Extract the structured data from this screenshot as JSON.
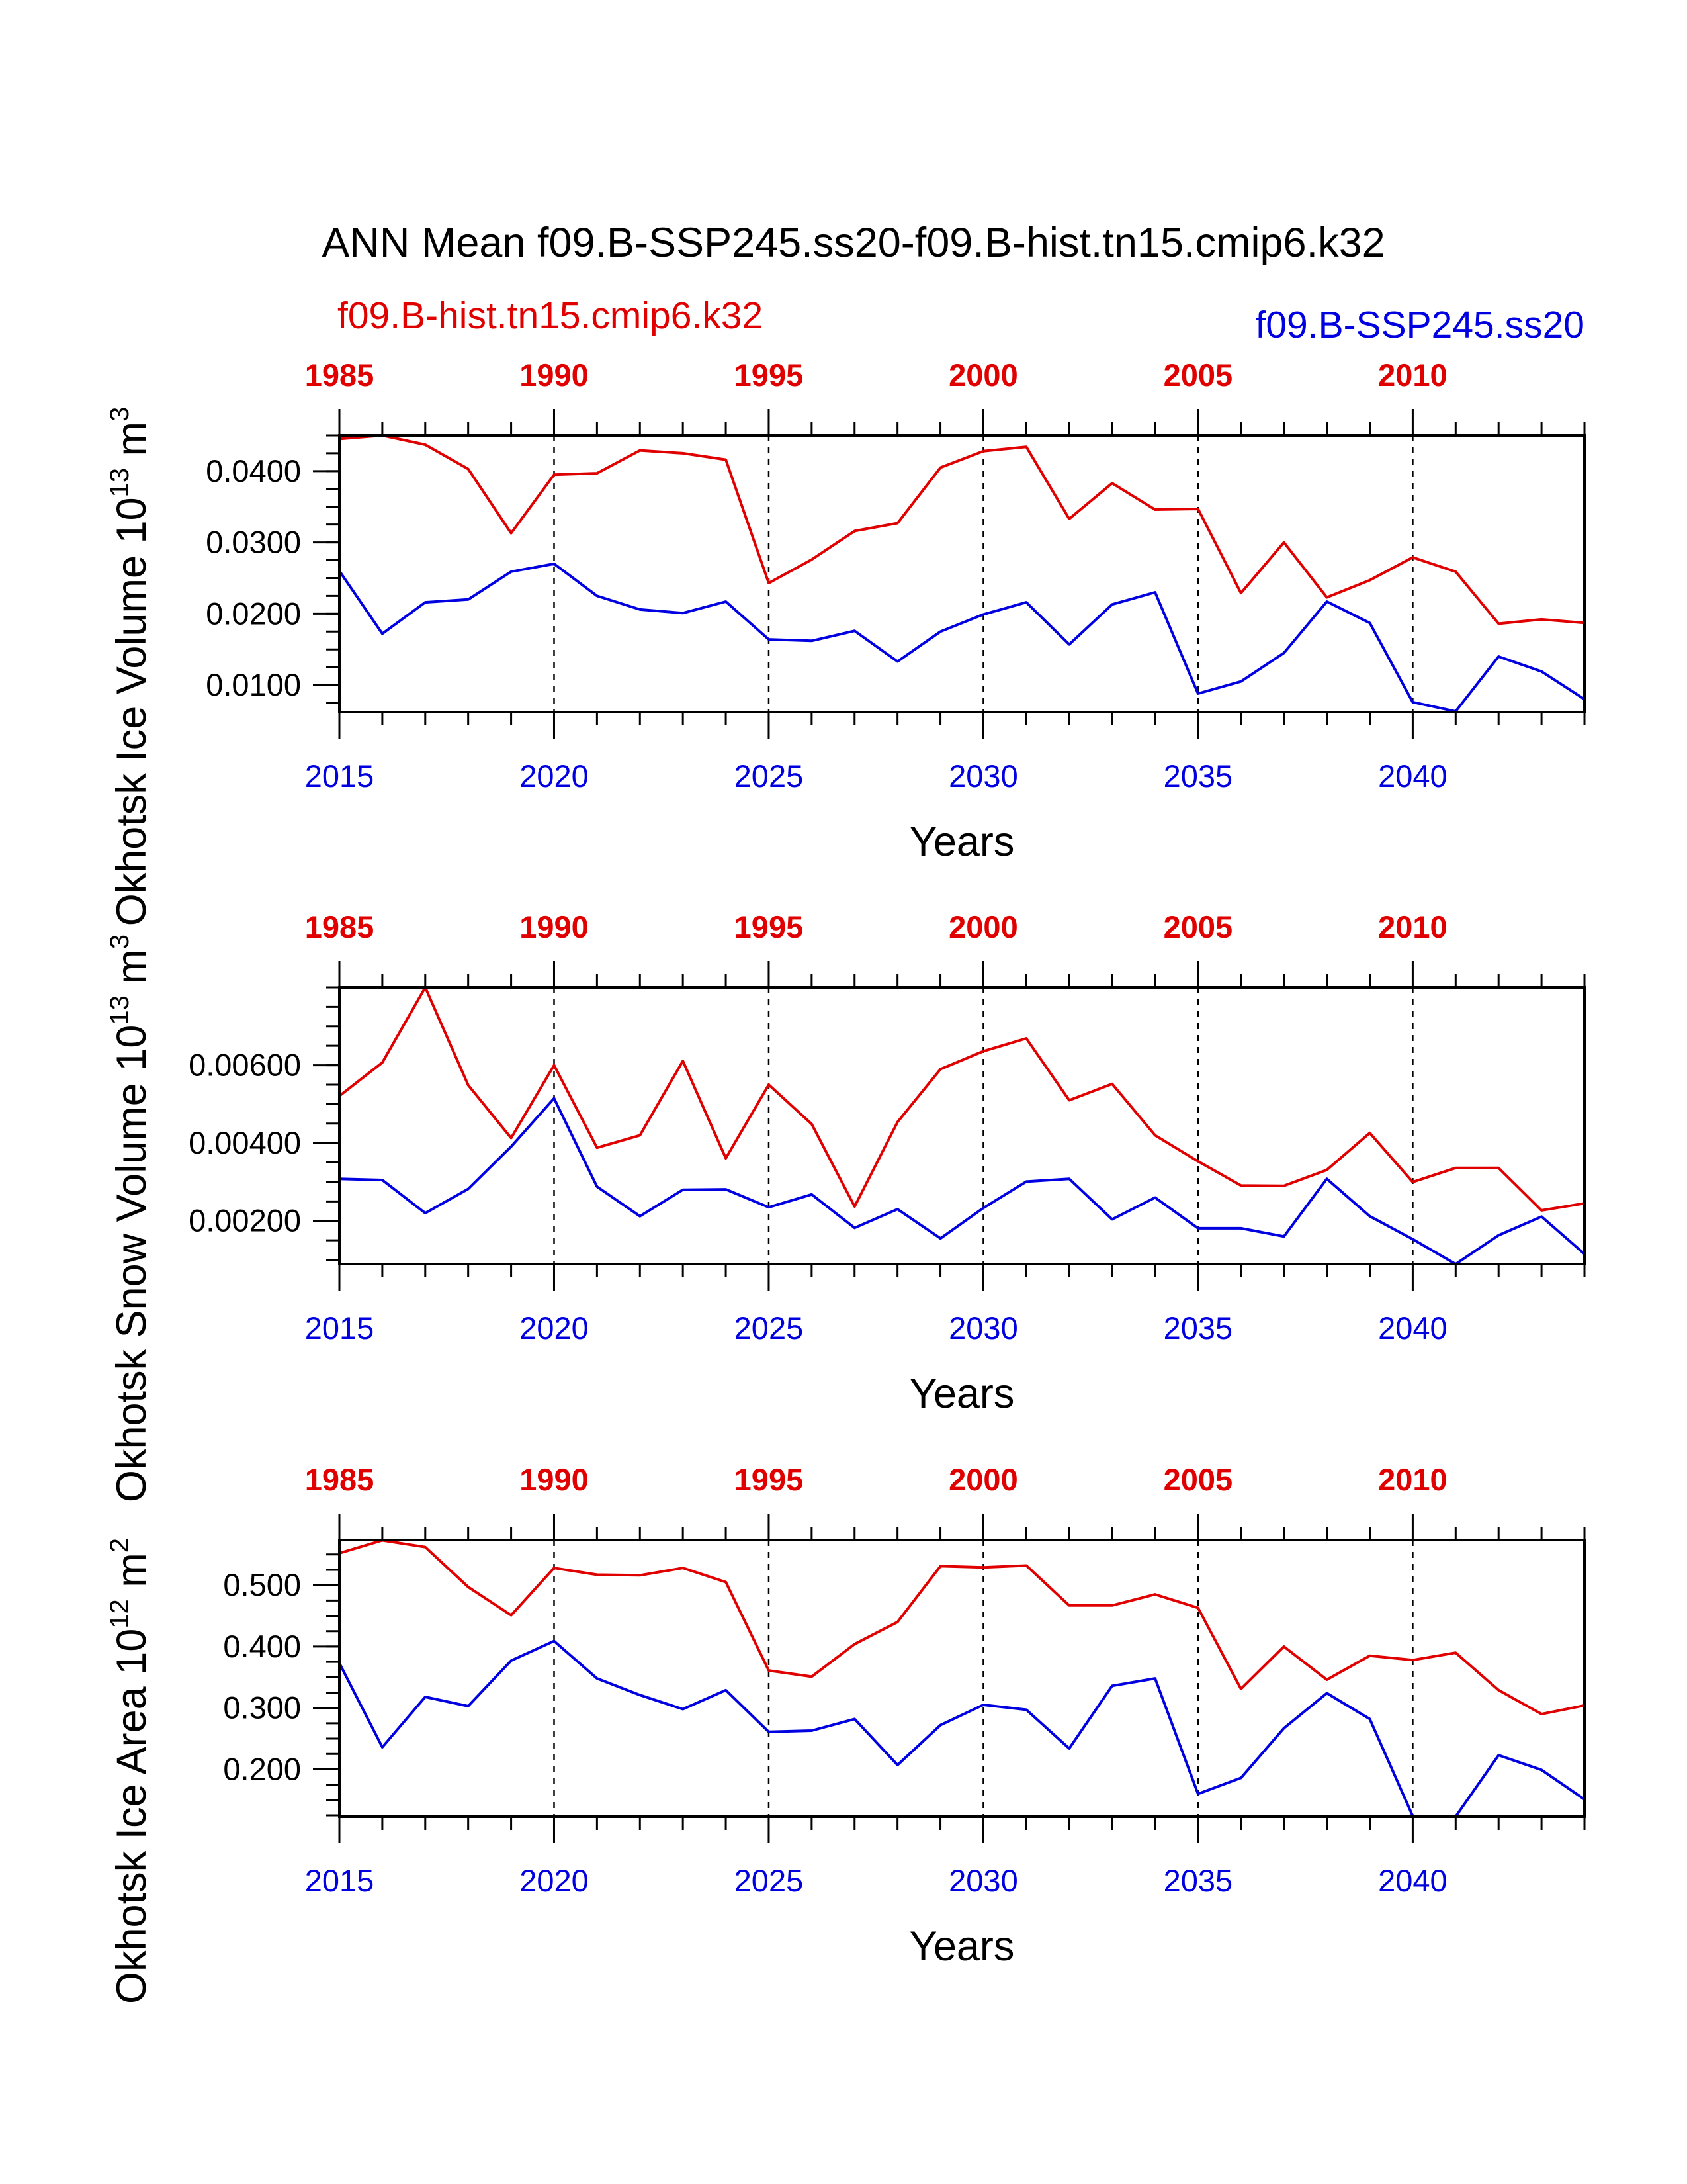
{
  "title": "ANN Mean f09.B-SSP245.ss20-f09.B-hist.tn15.cmip6.k32",
  "legend": {
    "hist": "f09.B-hist.tn15.cmip6.k32",
    "ssp": "f09.B-SSP245.ss20"
  },
  "colors": {
    "hist": "#e00000",
    "ssp": "#0000e0",
    "axis": "#000000"
  },
  "chart_data": [
    {
      "type": "line",
      "ylabel_main": "Okhotsk Ice Volume 10",
      "ylabel_exp": "13",
      "ylabel_unit": " m",
      "ylabel_unit_exp": "3",
      "xlabel": "Years",
      "bottom_ticks": [
        "2015",
        "2020",
        "2025",
        "2030",
        "2035",
        "2040"
      ],
      "top_ticks": [
        "1985",
        "1990",
        "1995",
        "2000",
        "2005",
        "2010"
      ],
      "ytick_labels": [
        "0.0100",
        "0.0200",
        "0.0300",
        "0.0400"
      ],
      "ylim": [
        0.0062,
        0.045
      ],
      "x_years": [
        2015,
        2016,
        2017,
        2018,
        2019,
        2020,
        2021,
        2022,
        2023,
        2024,
        2025,
        2026,
        2027,
        2028,
        2029,
        2030,
        2031,
        2032,
        2033,
        2034,
        2035,
        2036,
        2037,
        2038,
        2039,
        2040,
        2041,
        2042,
        2043,
        2044
      ],
      "series": [
        {
          "name": "f09.B-hist.tn15.cmip6.k32",
          "values": [
            0.0445,
            0.045,
            0.0437,
            0.0403,
            0.0313,
            0.0395,
            0.0397,
            0.0429,
            0.0425,
            0.0416,
            0.0243,
            0.0276,
            0.0316,
            0.0327,
            0.0405,
            0.0428,
            0.0434,
            0.0333,
            0.0383,
            0.0346,
            0.0347,
            0.0229,
            0.03,
            0.0223,
            0.0247,
            0.0279,
            0.0259,
            0.0186,
            0.0192,
            0.0187
          ]
        },
        {
          "name": "f09.B-SSP245.ss20",
          "values": [
            0.026,
            0.0172,
            0.0216,
            0.022,
            0.0259,
            0.027,
            0.0225,
            0.0206,
            0.0201,
            0.0217,
            0.0164,
            0.0162,
            0.0176,
            0.0133,
            0.0175,
            0.0199,
            0.0216,
            0.0157,
            0.0213,
            0.023,
            0.0088,
            0.0105,
            0.0145,
            0.0217,
            0.0187,
            0.0076,
            0.0063,
            0.014,
            0.0119,
            0.008
          ]
        }
      ]
    },
    {
      "type": "line",
      "ylabel_main": "Okhotsk Snow Volume 10",
      "ylabel_exp": "13",
      "ylabel_unit": " m",
      "ylabel_unit_exp": "3",
      "xlabel": "Years",
      "bottom_ticks": [
        "2015",
        "2020",
        "2025",
        "2030",
        "2035",
        "2040"
      ],
      "top_ticks": [
        "1985",
        "1990",
        "1995",
        "2000",
        "2005",
        "2010"
      ],
      "ytick_labels": [
        "0.00200",
        "0.00400",
        "0.00600"
      ],
      "ylim": [
        0.00089,
        0.008
      ],
      "x_years": [
        2015,
        2016,
        2017,
        2018,
        2019,
        2020,
        2021,
        2022,
        2023,
        2024,
        2025,
        2026,
        2027,
        2028,
        2029,
        2030,
        2031,
        2032,
        2033,
        2034,
        2035,
        2036,
        2037,
        2038,
        2039,
        2040,
        2041,
        2042,
        2043,
        2044
      ],
      "series": [
        {
          "name": "f09.B-hist.tn15.cmip6.k32",
          "values": [
            0.00521,
            0.00607,
            0.008,
            0.00549,
            0.00413,
            0.006,
            0.00388,
            0.0042,
            0.00611,
            0.00361,
            0.0055,
            0.00449,
            0.00237,
            0.00454,
            0.0059,
            0.00636,
            0.00669,
            0.0051,
            0.00552,
            0.0042,
            0.00353,
            0.00291,
            0.0029,
            0.00331,
            0.00426,
            0.003,
            0.00336,
            0.00336,
            0.00227,
            0.00245
          ]
        },
        {
          "name": "f09.B-SSP245.ss20",
          "values": [
            0.00308,
            0.00305,
            0.0022,
            0.00282,
            0.00391,
            0.00515,
            0.00288,
            0.00212,
            0.0028,
            0.00281,
            0.00235,
            0.00268,
            0.00182,
            0.0023,
            0.00155,
            0.00233,
            0.00301,
            0.00308,
            0.00204,
            0.0026,
            0.00181,
            0.00181,
            0.0016,
            0.00308,
            0.00212,
            0.00153,
            0.00089,
            0.00163,
            0.00211,
            0.00115
          ]
        }
      ]
    },
    {
      "type": "line",
      "ylabel_main": "Okhotsk Ice Area 10",
      "ylabel_exp": "12",
      "ylabel_unit": " m",
      "ylabel_unit_exp": "2",
      "xlabel": "Years",
      "bottom_ticks": [
        "2015",
        "2020",
        "2025",
        "2030",
        "2035",
        "2040"
      ],
      "top_ticks": [
        "1985",
        "1990",
        "1995",
        "2000",
        "2005",
        "2010"
      ],
      "ytick_labels": [
        "0.200",
        "0.300",
        "0.400",
        "0.500"
      ],
      "ylim": [
        0.1228,
        0.5735
      ],
      "x_years": [
        2015,
        2016,
        2017,
        2018,
        2019,
        2020,
        2021,
        2022,
        2023,
        2024,
        2025,
        2026,
        2027,
        2028,
        2029,
        2030,
        2031,
        2032,
        2033,
        2034,
        2035,
        2036,
        2037,
        2038,
        2039,
        2040,
        2041,
        2042,
        2043,
        2044
      ],
      "series": [
        {
          "name": "f09.B-hist.tn15.cmip6.k32",
          "values": [
            0.552,
            0.573,
            0.562,
            0.497,
            0.451,
            0.528,
            0.517,
            0.516,
            0.528,
            0.505,
            0.361,
            0.351,
            0.404,
            0.44,
            0.531,
            0.529,
            0.532,
            0.467,
            0.467,
            0.485,
            0.463,
            0.331,
            0.4,
            0.346,
            0.385,
            0.378,
            0.39,
            0.329,
            0.29,
            0.304
          ]
        },
        {
          "name": "f09.B-SSP245.ss20",
          "values": [
            0.373,
            0.236,
            0.318,
            0.303,
            0.377,
            0.409,
            0.348,
            0.321,
            0.298,
            0.329,
            0.261,
            0.263,
            0.282,
            0.207,
            0.272,
            0.305,
            0.297,
            0.234,
            0.336,
            0.348,
            0.16,
            0.186,
            0.267,
            0.324,
            0.282,
            0.124,
            0.123,
            0.223,
            0.199,
            0.151
          ]
        }
      ]
    }
  ]
}
